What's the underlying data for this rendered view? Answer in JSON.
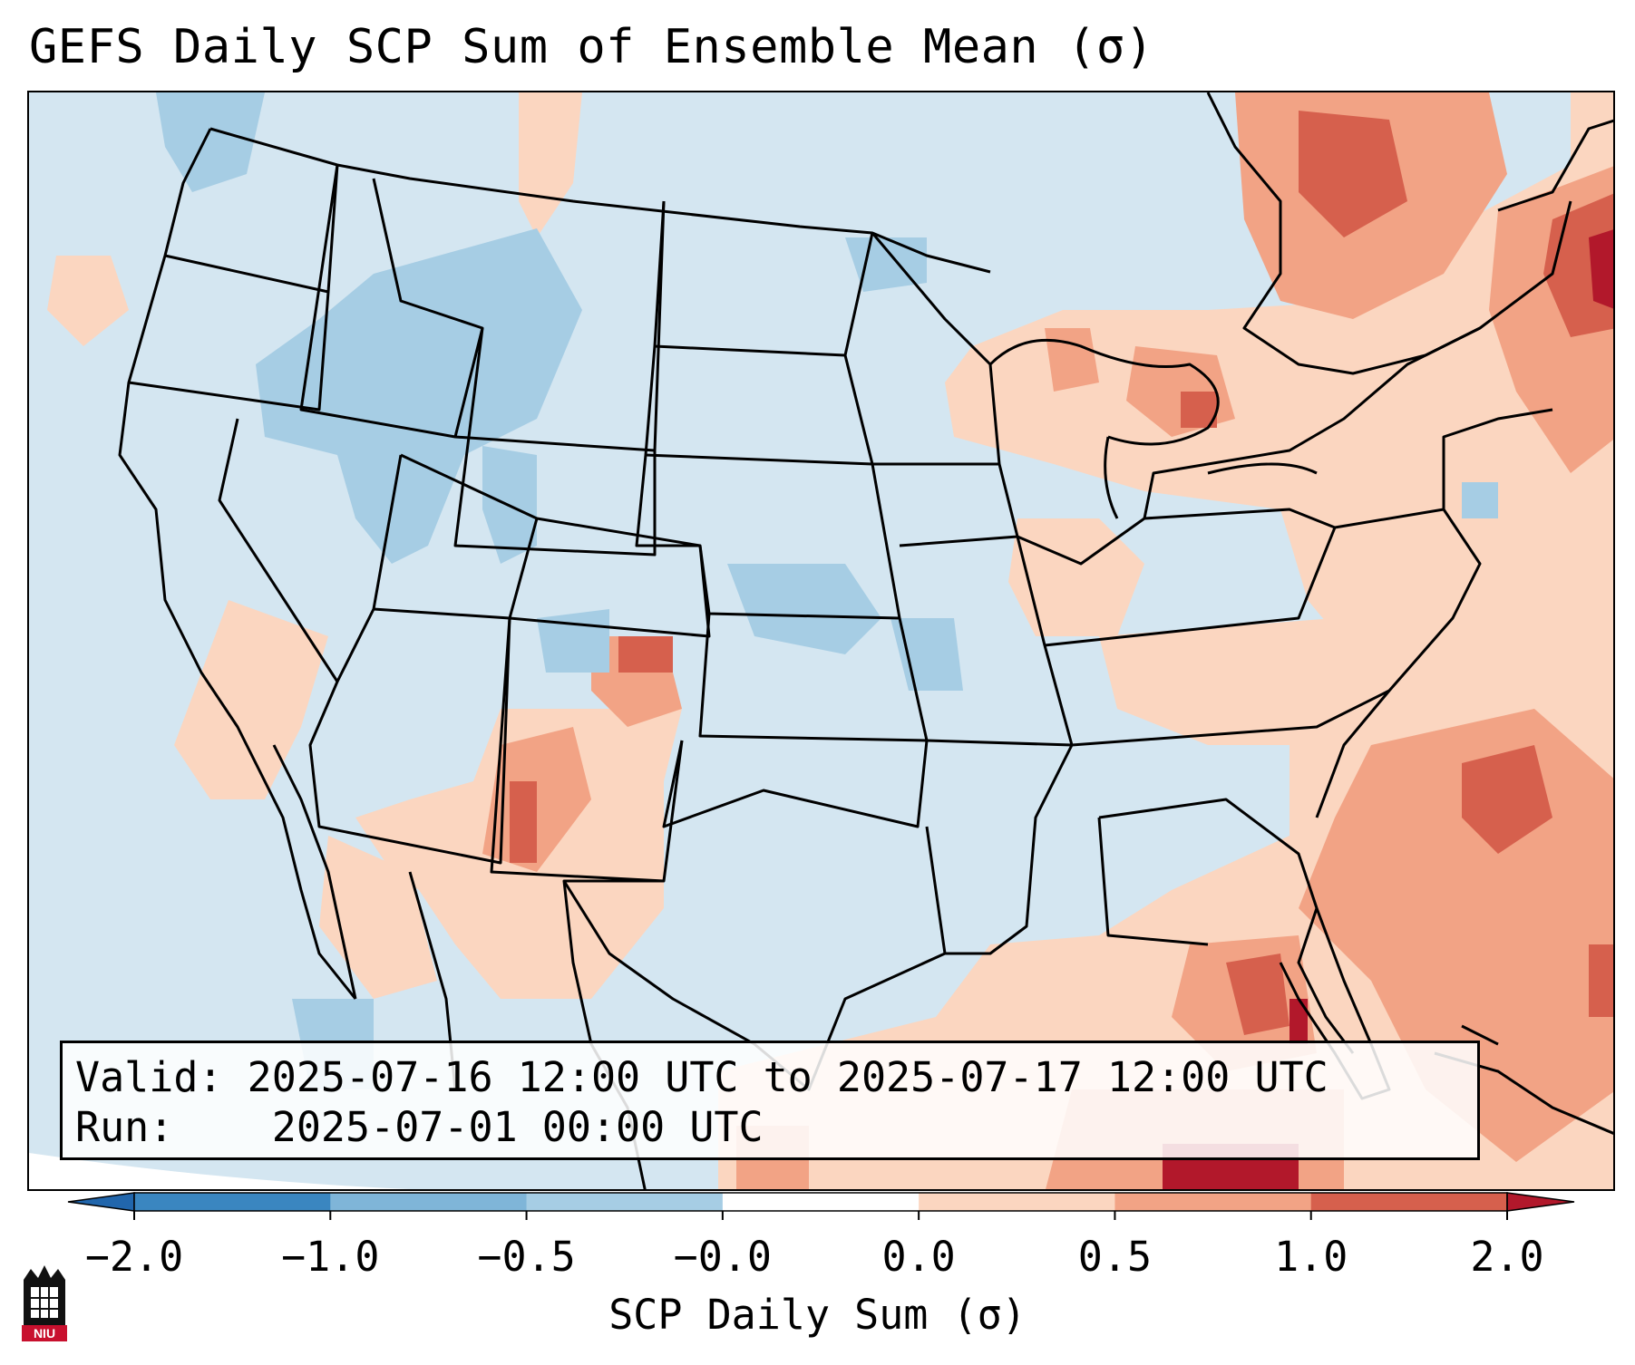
{
  "title": "GEFS Daily SCP Sum of Ensemble Mean (σ)",
  "info": {
    "valid_label": "Valid:",
    "valid_value": "2025-07-16 12:00 UTC to 2025-07-17 12:00 UTC",
    "run_label": "Run:",
    "run_value": "2025-07-01 00:00 UTC"
  },
  "colorbar": {
    "label": "SCP Daily Sum (σ)",
    "ticks": [
      "−2.0",
      "−1.0",
      "−0.5",
      "−0.0",
      "0.0",
      "0.5",
      "1.0",
      "2.0"
    ],
    "colors": [
      "#3a86c0",
      "#7fb5d8",
      "#a6cde4",
      "#d4e6f1",
      "#ffffff",
      "#fbd6c0",
      "#f2a385",
      "#d6604d",
      "#b2182b"
    ],
    "under_color": "#2166ac",
    "over_color": "#b2182b"
  },
  "map": {
    "ocean_color": "#d4e6f1",
    "land_default": "#d4e6f1",
    "border_color": "#000000"
  },
  "logo": {
    "text": "NIU",
    "color": "#c8102e"
  }
}
